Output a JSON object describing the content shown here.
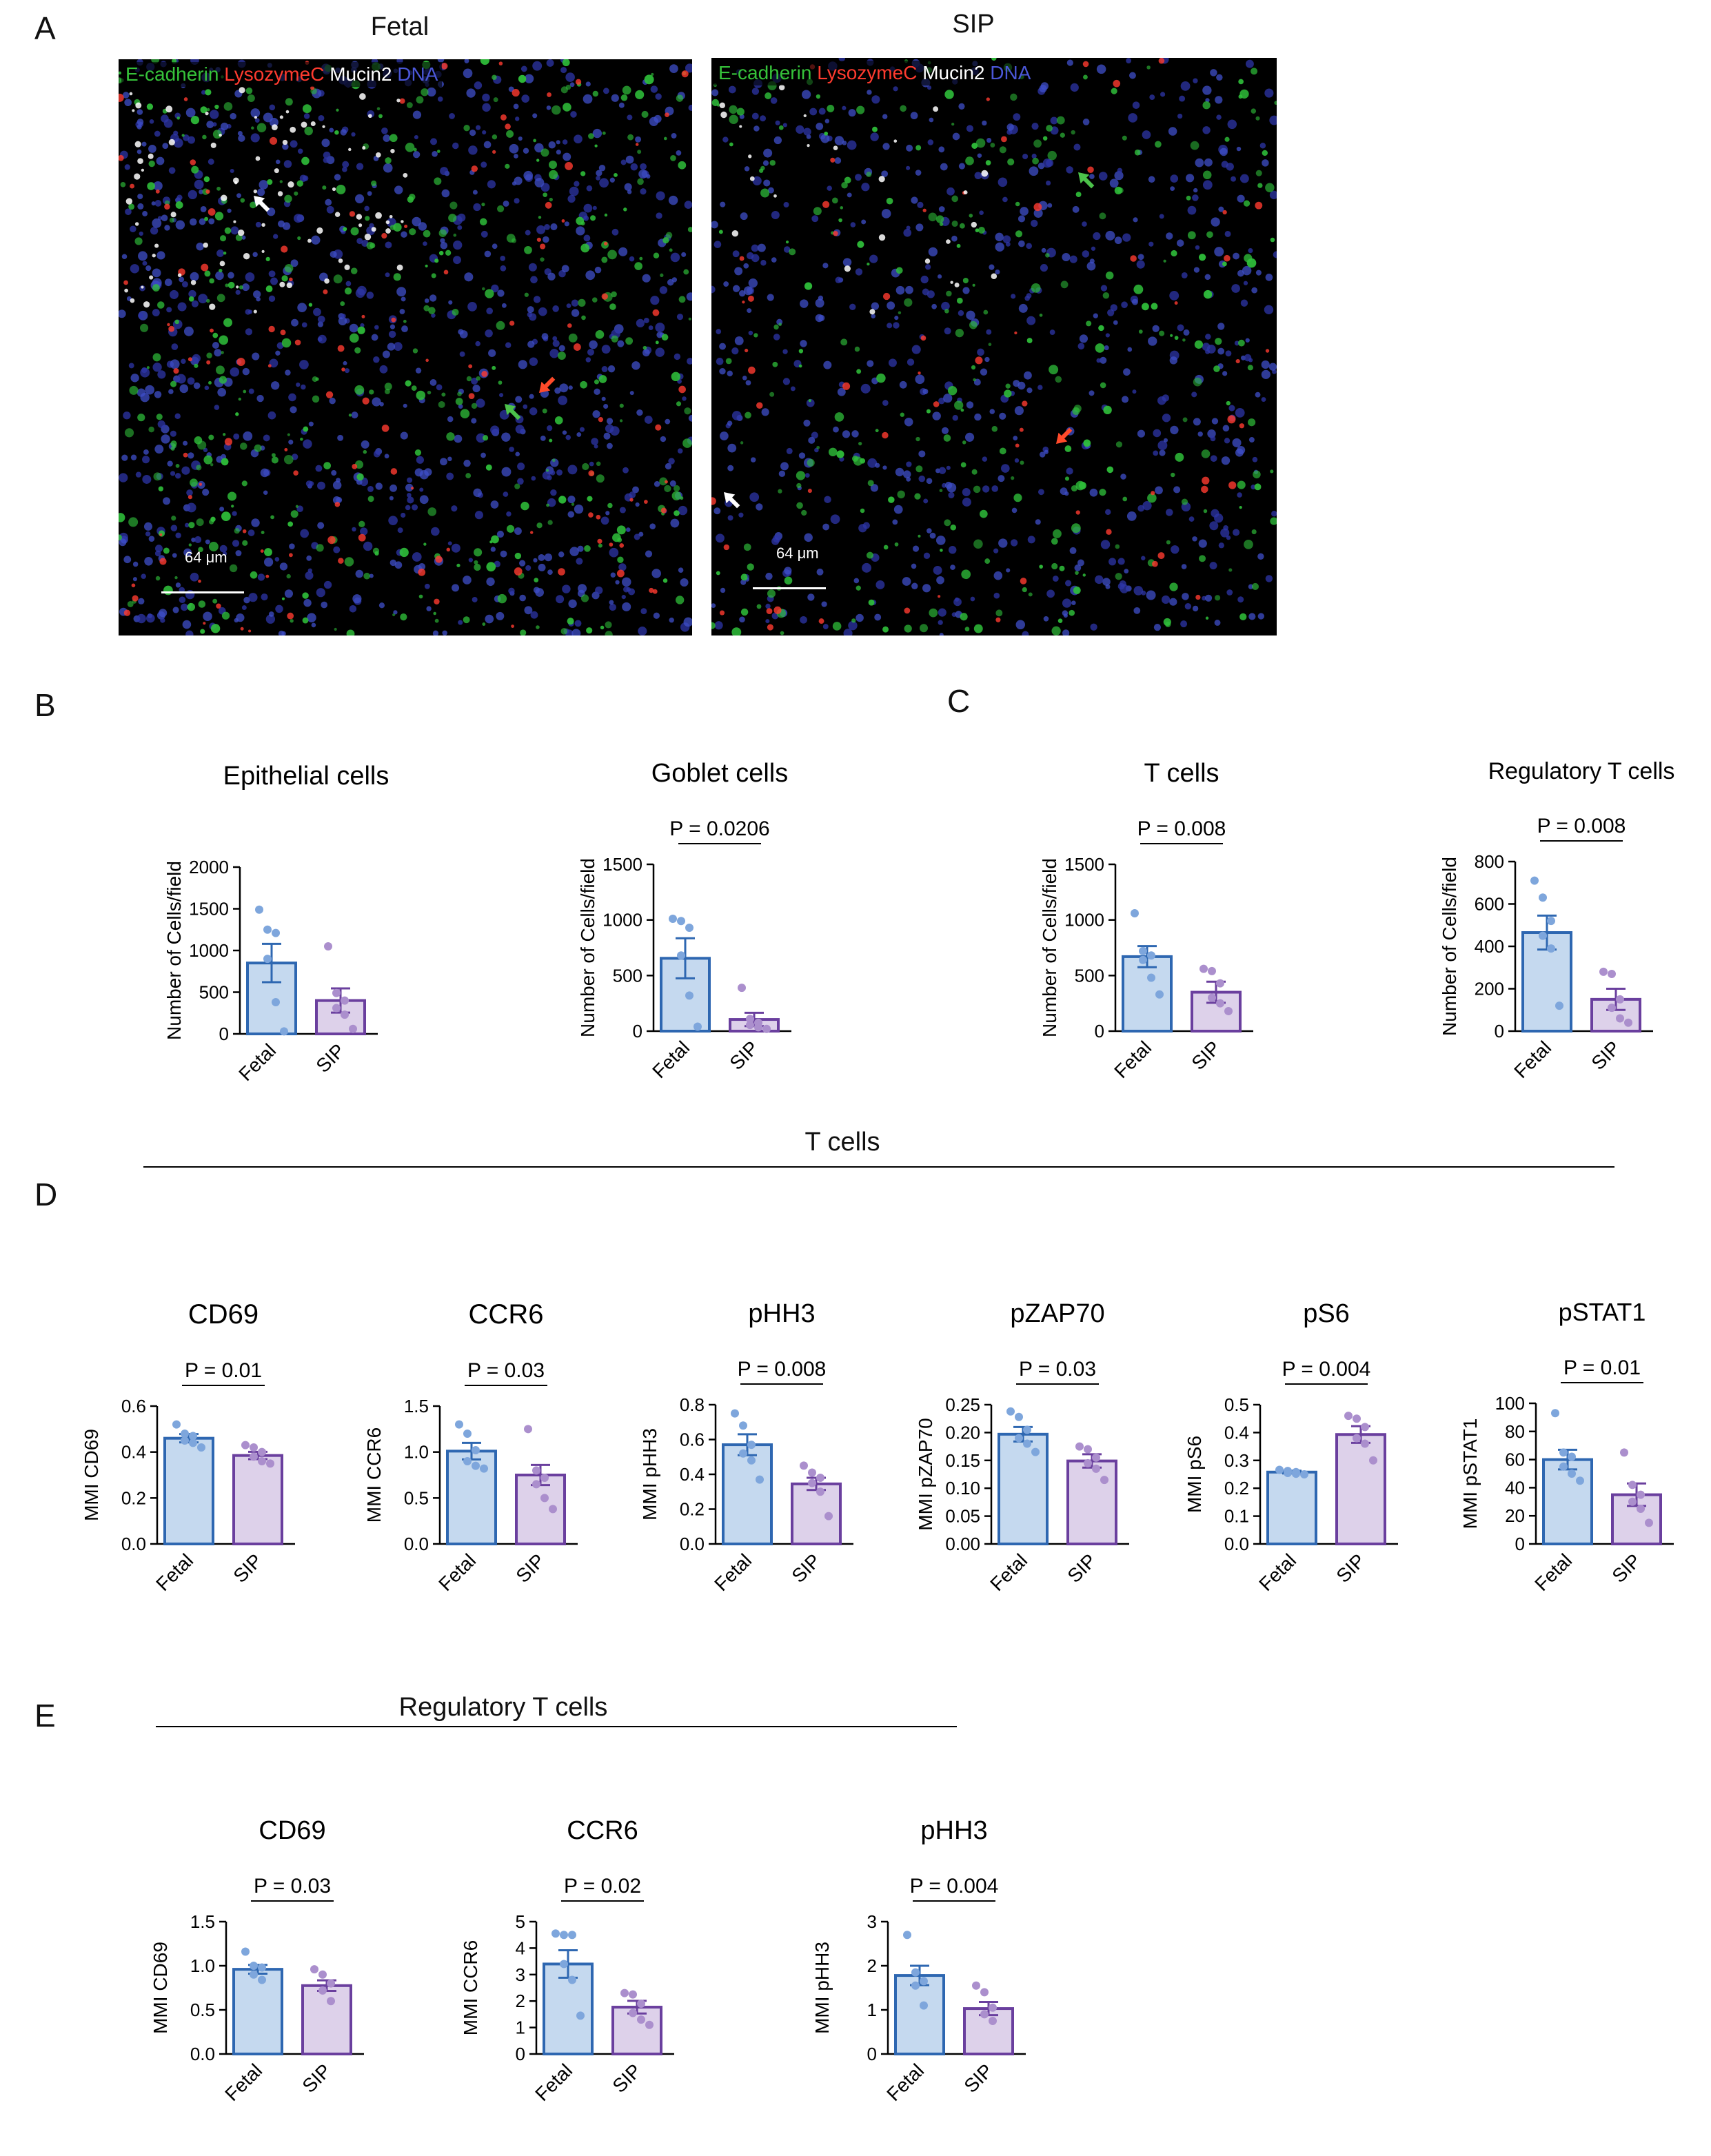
{
  "panels": {
    "A": "A",
    "B": "B",
    "C": "C",
    "D": "D",
    "E": "E"
  },
  "images": [
    {
      "title": "Fetal",
      "legend": [
        {
          "text": "E-cadherin",
          "color": "#36c23a"
        },
        {
          "text": "LysozymeC",
          "color": "#ff3b2f"
        },
        {
          "text": "Mucin2",
          "color": "#ffffff"
        },
        {
          "text": "DNA",
          "color": "#3b46c8"
        }
      ],
      "scale": "64 μm"
    },
    {
      "title": "SIP",
      "legend": [
        {
          "text": "E-cadherin",
          "color": "#36c23a"
        },
        {
          "text": "LysozymeC",
          "color": "#ff3b2f"
        },
        {
          "text": "Mucin2",
          "color": "#ffffff"
        },
        {
          "text": "DNA",
          "color": "#3b46c8"
        }
      ],
      "scale": "64 μm"
    }
  ],
  "groups": {
    "tcells": "T cells",
    "tregs": "Regulatory T cells"
  },
  "colors": {
    "fetal_fill": "#c5d9ef",
    "fetal_stroke": "#2e67b1",
    "fetal_dot": "#7ea6dc",
    "sip_fill": "#ddd1ea",
    "sip_stroke": "#6a3f9e",
    "sip_dot": "#ab8fcd"
  },
  "chart_data": [
    {
      "type": "bar",
      "title": "Epithelial cells",
      "ylabel": "Number of Cells/field",
      "categories": [
        "Fetal",
        "SIP"
      ],
      "values": [
        850,
        400
      ],
      "errors": [
        230,
        145
      ],
      "ylim": [
        0,
        2000
      ],
      "yticks": [
        "0",
        "500",
        "1000",
        "1500",
        "2000"
      ],
      "points": [
        [
          1490,
          1250,
          1210,
          900,
          380,
          30
        ],
        [
          1050,
          490,
          400,
          310,
          230,
          60
        ]
      ],
      "pvalue": null
    },
    {
      "type": "bar",
      "title": "Goblet cells",
      "ylabel": "Number of Cells/field",
      "categories": [
        "Fetal",
        "SIP"
      ],
      "values": [
        655,
        105
      ],
      "errors": [
        180,
        60
      ],
      "ylim": [
        0,
        1500
      ],
      "yticks": [
        "0",
        "500",
        "1000",
        "1500"
      ],
      "points": [
        [
          1010,
          990,
          930,
          680,
          320,
          40
        ],
        [
          390,
          110,
          75,
          55,
          35,
          20
        ]
      ],
      "pvalue": "P = 0.0206"
    },
    {
      "type": "bar",
      "title": "T cells",
      "ylabel": "Number of Cells/field",
      "categories": [
        "Fetal",
        "SIP"
      ],
      "values": [
        670,
        350
      ],
      "errors": [
        95,
        95
      ],
      "ylim": [
        0,
        1500
      ],
      "yticks": [
        "0",
        "500",
        "1000",
        "1500"
      ],
      "points": [
        [
          1060,
          720,
          680,
          640,
          480,
          330
        ],
        [
          560,
          540,
          430,
          300,
          250,
          180
        ]
      ],
      "pvalue": "P = 0.008"
    },
    {
      "type": "bar",
      "title": "Regulatory T cells",
      "ylabel": "Number of Cells/field",
      "categories": [
        "Fetal",
        "SIP"
      ],
      "values": [
        465,
        150
      ],
      "errors": [
        80,
        50
      ],
      "ylim": [
        0,
        800
      ],
      "yticks": [
        "0",
        "200",
        "400",
        "600",
        "800"
      ],
      "points": [
        [
          710,
          630,
          520,
          450,
          390,
          120
        ],
        [
          280,
          270,
          150,
          110,
          60,
          40
        ]
      ],
      "pvalue": "P = 0.008"
    },
    {
      "type": "bar",
      "title": "CD69",
      "ylabel": "MMI CD69",
      "categories": [
        "Fetal",
        "SIP"
      ],
      "values": [
        0.46,
        0.385
      ],
      "errors": [
        0.018,
        0.016
      ],
      "ylim": [
        0,
        0.6
      ],
      "yticks": [
        "0.0",
        "0.2",
        "0.4",
        "0.6"
      ],
      "points": [
        [
          0.52,
          0.48,
          0.47,
          0.45,
          0.44,
          0.42
        ],
        [
          0.43,
          0.42,
          0.4,
          0.38,
          0.36,
          0.35
        ]
      ],
      "pvalue": "P = 0.01"
    },
    {
      "type": "bar",
      "title": "CCR6",
      "ylabel": "MMI CCR6",
      "categories": [
        "Fetal",
        "SIP"
      ],
      "values": [
        1.01,
        0.75
      ],
      "errors": [
        0.09,
        0.11
      ],
      "ylim": [
        0,
        1.5
      ],
      "yticks": [
        "0.0",
        "0.5",
        "1.0",
        "1.5"
      ],
      "points": [
        [
          1.3,
          1.2,
          1.02,
          0.9,
          0.85,
          0.82
        ],
        [
          1.25,
          0.8,
          0.72,
          0.65,
          0.5,
          0.38
        ]
      ],
      "pvalue": "P = 0.03"
    },
    {
      "type": "bar",
      "title": "pHH3",
      "ylabel": "MMI pHH3",
      "categories": [
        "Fetal",
        "SIP"
      ],
      "values": [
        0.57,
        0.345
      ],
      "errors": [
        0.06,
        0.035
      ],
      "ylim": [
        0,
        0.8
      ],
      "yticks": [
        "0.0",
        "0.2",
        "0.4",
        "0.6",
        "0.8"
      ],
      "points": [
        [
          0.75,
          0.68,
          0.57,
          0.52,
          0.48,
          0.37
        ],
        [
          0.45,
          0.41,
          0.38,
          0.35,
          0.3,
          0.16
        ]
      ],
      "pvalue": "P = 0.008"
    },
    {
      "type": "bar",
      "title": "pZAP70",
      "ylabel": "MMI pZAP70",
      "categories": [
        "Fetal",
        "SIP"
      ],
      "values": [
        0.197,
        0.149
      ],
      "errors": [
        0.013,
        0.012
      ],
      "ylim": [
        0,
        0.25
      ],
      "yticks": [
        "0.00",
        "0.05",
        "0.10",
        "0.15",
        "0.20",
        "0.25"
      ],
      "points": [
        [
          0.238,
          0.228,
          0.205,
          0.19,
          0.18,
          0.165
        ],
        [
          0.175,
          0.17,
          0.155,
          0.145,
          0.135,
          0.115
        ]
      ],
      "pvalue": "P = 0.03"
    },
    {
      "type": "bar",
      "title": "pS6",
      "ylabel": "MMI pS6",
      "categories": [
        "Fetal",
        "SIP"
      ],
      "values": [
        0.258,
        0.393
      ],
      "errors": [
        0.005,
        0.03
      ],
      "ylim": [
        0,
        0.5
      ],
      "yticks": [
        "0.0",
        "0.1",
        "0.2",
        "0.3",
        "0.4",
        "0.5"
      ],
      "points": [
        [
          0.266,
          0.262,
          0.258,
          0.255,
          0.252,
          0.25
        ],
        [
          0.46,
          0.45,
          0.42,
          0.38,
          0.36,
          0.3
        ]
      ],
      "pvalue": "P = 0.004"
    },
    {
      "type": "bar",
      "title": "pSTAT1",
      "ylabel": "MMI pSTAT1",
      "categories": [
        "Fetal",
        "SIP"
      ],
      "values": [
        60,
        35
      ],
      "errors": [
        7,
        8
      ],
      "ylim": [
        0,
        100
      ],
      "yticks": [
        "0",
        "20",
        "40",
        "60",
        "80",
        "100"
      ],
      "points": [
        [
          93,
          65,
          62,
          55,
          50,
          45
        ],
        [
          65,
          42,
          35,
          30,
          25,
          15
        ]
      ],
      "pvalue": "P = 0.01"
    },
    {
      "type": "bar",
      "title": "CD69",
      "ylabel": "MMI CD69",
      "categories": [
        "Fetal",
        "SIP"
      ],
      "values": [
        0.96,
        0.775
      ],
      "errors": [
        0.05,
        0.06
      ],
      "ylim": [
        0,
        1.5
      ],
      "yticks": [
        "0.0",
        "0.5",
        "1.0",
        "1.5"
      ],
      "points": [
        [
          1.16,
          1.0,
          0.98,
          0.9,
          0.84
        ],
        [
          0.96,
          0.9,
          0.8,
          0.72,
          0.6
        ]
      ],
      "pvalue": "P = 0.03"
    },
    {
      "type": "bar",
      "title": "CCR6",
      "ylabel": "MMI CCR6",
      "categories": [
        "Fetal",
        "SIP"
      ],
      "values": [
        3.4,
        1.77
      ],
      "errors": [
        0.52,
        0.24
      ],
      "ylim": [
        0,
        5
      ],
      "yticks": [
        "0",
        "1",
        "2",
        "3",
        "4",
        "5"
      ],
      "points": [
        [
          4.55,
          4.5,
          4.5,
          3.4,
          2.8,
          1.45
        ],
        [
          2.3,
          2.25,
          1.9,
          1.55,
          1.3,
          1.1
        ]
      ],
      "pvalue": "P = 0.02"
    },
    {
      "type": "bar",
      "title": "pHH3",
      "ylabel": "MMI pHH3",
      "categories": [
        "Fetal",
        "SIP"
      ],
      "values": [
        1.78,
        1.03
      ],
      "errors": [
        0.22,
        0.15
      ],
      "ylim": [
        0,
        3
      ],
      "yticks": [
        "0",
        "1",
        "2",
        "3"
      ],
      "points": [
        [
          2.7,
          1.85,
          1.65,
          1.55,
          1.1
        ],
        [
          1.55,
          1.4,
          1.05,
          0.9,
          0.75
        ]
      ],
      "pvalue": "P = 0.004"
    }
  ]
}
